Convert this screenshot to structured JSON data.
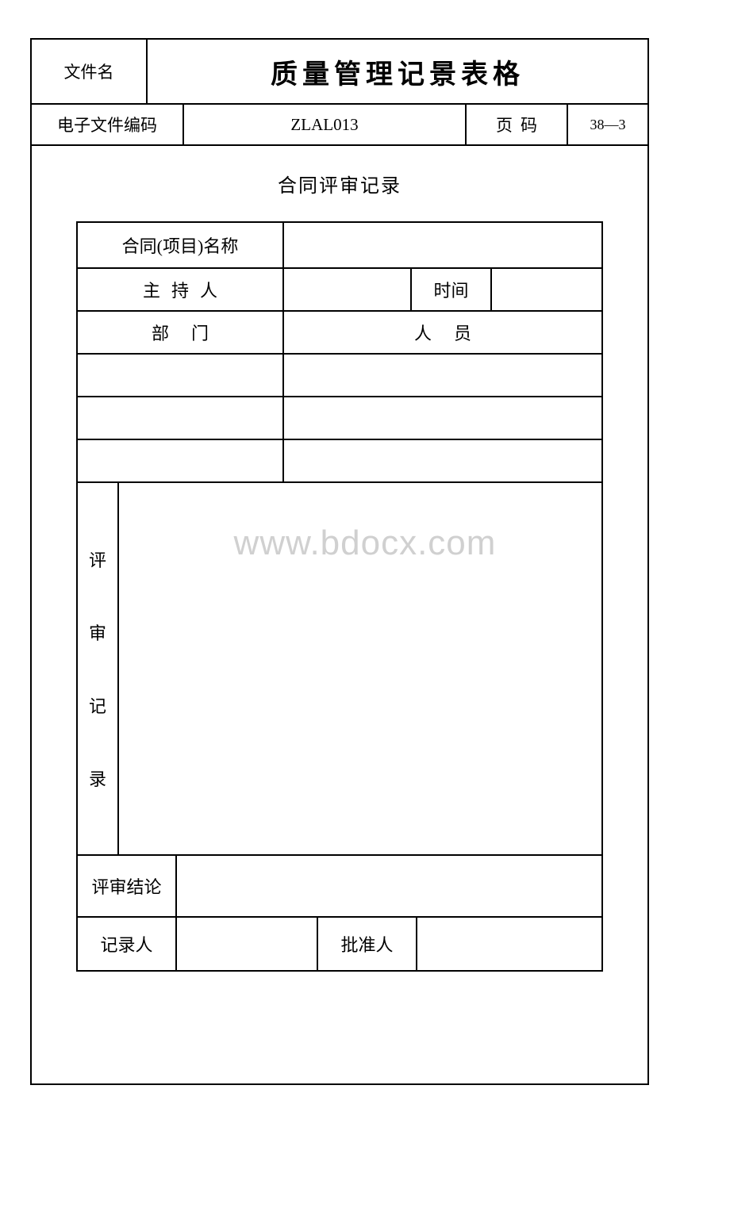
{
  "header": {
    "file_name_label": "文件名",
    "title": "质量管理记景表格",
    "ecode_label": "电子文件编码",
    "ecode_value": "ZLAL013",
    "page_label": "页码",
    "page_value": "38—3"
  },
  "section": {
    "title": "合同评审记录"
  },
  "rows": {
    "project_name_label": "合同(项目)名称",
    "project_name_value": "",
    "host_label": "主持人",
    "host_value": "",
    "time_label": "时间",
    "time_value": "",
    "dept_label": "部门",
    "person_label": "人员",
    "review_record_label_chars": [
      "评",
      "审",
      "记",
      "录"
    ],
    "review_record_value": "",
    "conclusion_label": "评审结论",
    "conclusion_value": "",
    "recorder_label": "记录人",
    "recorder_value": "",
    "approver_label": "批准人",
    "approver_value": ""
  },
  "watermark": "www.bdocx.com",
  "colors": {
    "border": "#000000",
    "text": "#000000",
    "watermark": "#d0d0d0",
    "background": "#ffffff"
  }
}
